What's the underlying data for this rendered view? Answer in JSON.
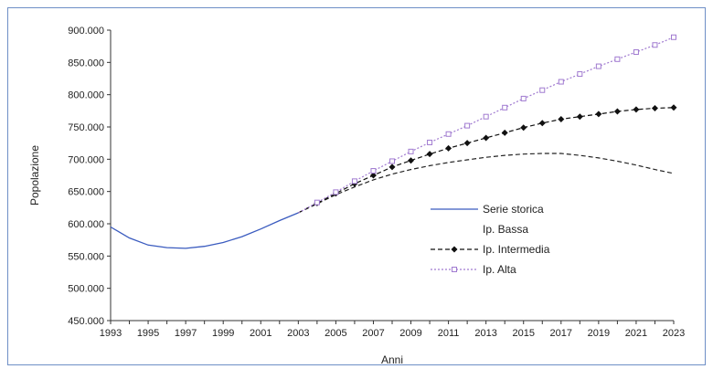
{
  "chart_data": {
    "type": "line",
    "title": "",
    "xlabel": "Anni",
    "ylabel": "Popolazione",
    "ylim": [
      450000,
      900000
    ],
    "xlim": [
      1993,
      2023
    ],
    "x_tick_labels": [
      "1993",
      "1995",
      "1997",
      "1999",
      "2001",
      "2003",
      "2005",
      "2007",
      "2009",
      "2011",
      "2013",
      "2015",
      "2017",
      "2019",
      "2021",
      "2023"
    ],
    "y_tick_labels": [
      "450.000",
      "500.000",
      "550.000",
      "600.000",
      "650.000",
      "700.000",
      "750.000",
      "800.000",
      "850.000",
      "900.000"
    ],
    "grid": false,
    "legend_position": "right",
    "series": [
      {
        "name": "Serie storica",
        "color": "#3a5bbf",
        "style": "solid",
        "marker": "none",
        "x": [
          1993,
          1994,
          1995,
          1996,
          1997,
          1998,
          1999,
          2000,
          2001,
          2002,
          2003
        ],
        "y": [
          595000,
          578000,
          567000,
          563000,
          562000,
          565000,
          571000,
          580000,
          592000,
          605000,
          617000
        ]
      },
      {
        "name": "Ip. Bassa",
        "color": "#222222",
        "style": "dash",
        "marker": "none",
        "x": [
          2003,
          2004,
          2005,
          2006,
          2007,
          2008,
          2009,
          2010,
          2011,
          2012,
          2013,
          2014,
          2015,
          2016,
          2017,
          2018,
          2019,
          2020,
          2021,
          2022,
          2023
        ],
        "y": [
          617000,
          631000,
          645000,
          657000,
          668000,
          677000,
          684000,
          690000,
          695000,
          699000,
          703000,
          706000,
          708000,
          709000,
          709000,
          706000,
          702000,
          697000,
          691000,
          684000,
          678000
        ]
      },
      {
        "name": "Ip. Intermedia",
        "color": "#111111",
        "style": "dash",
        "marker": "diamond",
        "x": [
          2003,
          2004,
          2005,
          2006,
          2007,
          2008,
          2009,
          2010,
          2011,
          2012,
          2013,
          2014,
          2015,
          2016,
          2017,
          2018,
          2019,
          2020,
          2021,
          2022,
          2023
        ],
        "y": [
          617000,
          632000,
          647000,
          662000,
          675000,
          688000,
          698000,
          708000,
          717000,
          725000,
          733000,
          741000,
          749000,
          756000,
          762000,
          766000,
          770000,
          774000,
          777000,
          779000,
          780000
        ]
      },
      {
        "name": "Ip. Alta",
        "color": "#a07ad0",
        "style": "dot",
        "marker": "square",
        "x": [
          2003,
          2004,
          2005,
          2006,
          2007,
          2008,
          2009,
          2010,
          2011,
          2012,
          2013,
          2014,
          2015,
          2016,
          2017,
          2018,
          2019,
          2020,
          2021,
          2022,
          2023
        ],
        "y": [
          617000,
          633000,
          649000,
          666000,
          682000,
          697000,
          712000,
          726000,
          739000,
          752000,
          766000,
          780000,
          794000,
          807000,
          820000,
          832000,
          844000,
          855000,
          866000,
          877000,
          889000
        ]
      }
    ]
  }
}
